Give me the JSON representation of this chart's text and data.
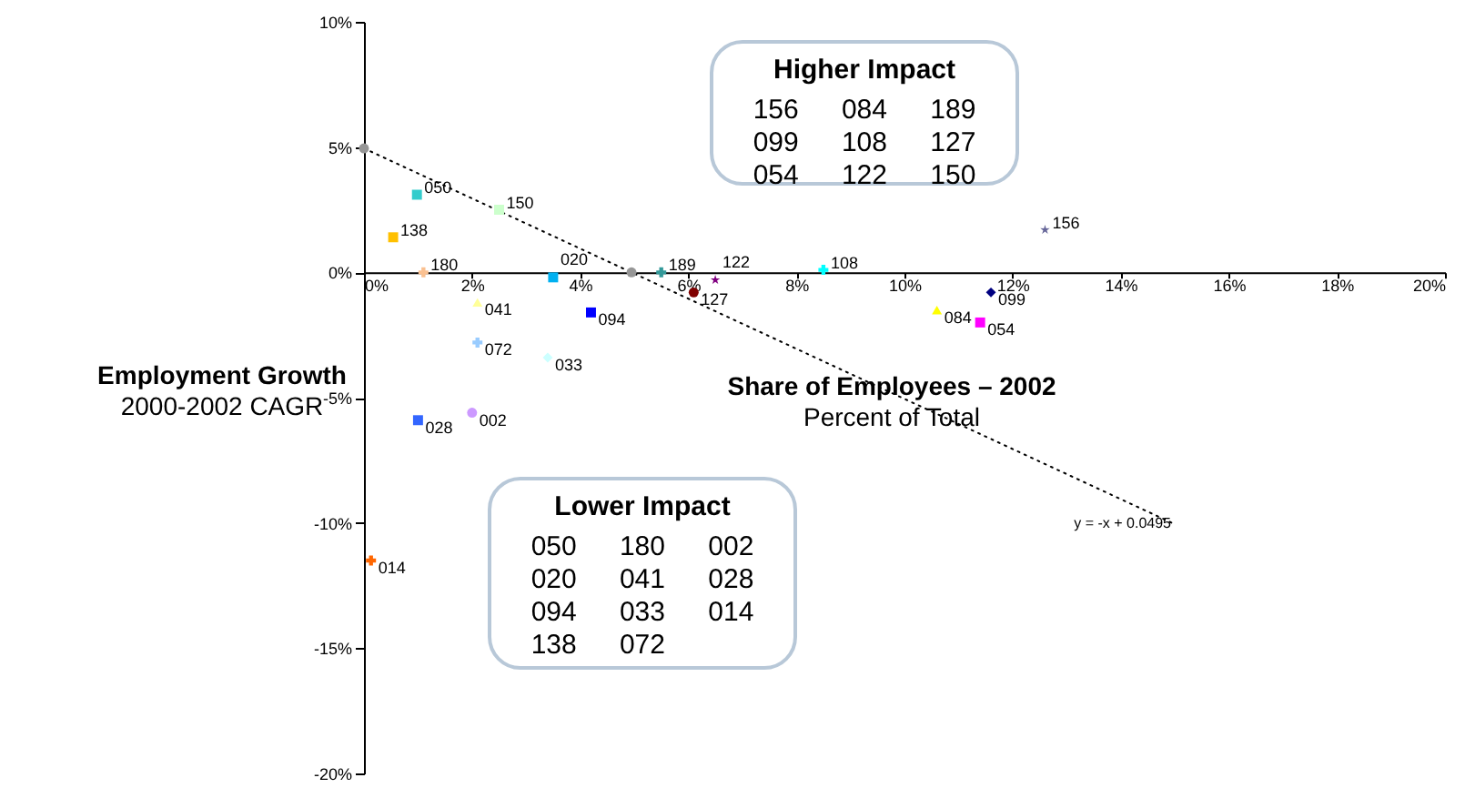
{
  "chart_data": {
    "type": "scatter",
    "xlabel": "Share of Employees – 2002",
    "ylabel": "Employment Growth",
    "xlim": [
      0,
      20
    ],
    "ylim": [
      -20,
      10
    ],
    "xticks": [
      {
        "value": 0,
        "label": "0%"
      },
      {
        "value": 2,
        "label": "2%"
      },
      {
        "value": 4,
        "label": "4%"
      },
      {
        "value": 6,
        "label": "6%"
      },
      {
        "value": 8,
        "label": "8%"
      },
      {
        "value": 10,
        "label": "10%"
      },
      {
        "value": 12,
        "label": "12%"
      },
      {
        "value": 14,
        "label": "14%"
      },
      {
        "value": 16,
        "label": "16%"
      },
      {
        "value": 18,
        "label": "18%"
      },
      {
        "value": 20,
        "label": "20%"
      }
    ],
    "yticks": [
      {
        "value": -20,
        "label": "-20%"
      },
      {
        "value": -15,
        "label": "-15%"
      },
      {
        "value": -10,
        "label": "-10%"
      },
      {
        "value": -5,
        "label": "-5%"
      },
      {
        "value": 0,
        "label": "0%"
      },
      {
        "value": 5,
        "label": "5%"
      },
      {
        "value": 10,
        "label": "10%"
      }
    ],
    "grid": false,
    "series": [
      {
        "type": "line",
        "color": "#000000",
        "line_style": "dotted",
        "marker": "none",
        "x": [
          0,
          15
        ],
        "values": [
          4.95,
          -10.05
        ]
      },
      {
        "color": "#969696",
        "marker": "circle",
        "x": [
          0,
          4.95
        ],
        "values": [
          4.95,
          0
        ]
      },
      {
        "name": "050",
        "color": "#33cccc",
        "marker": "square",
        "x": [
          0.98
        ],
        "values": [
          3.1
        ]
      },
      {
        "name": "150",
        "color": "#ccffcc",
        "marker": "square",
        "x": [
          2.5
        ],
        "values": [
          2.5
        ]
      },
      {
        "name": "138",
        "color": "#ffc000",
        "marker": "square",
        "x": [
          0.54
        ],
        "values": [
          1.4
        ]
      },
      {
        "name": "180",
        "color": "#fac090",
        "marker": "cross",
        "x": [
          1.1
        ],
        "values": [
          0
        ]
      },
      {
        "name": "020",
        "color": "#00b0f0",
        "marker": "square",
        "x": [
          3.5
        ],
        "values": [
          -0.2
        ]
      },
      {
        "name": "041",
        "color": "#ffff99",
        "marker": "triangle",
        "x": [
          2.1
        ],
        "values": [
          -1.2
        ]
      },
      {
        "name": "094",
        "color": "#0000ff",
        "marker": "square",
        "x": [
          4.2
        ],
        "values": [
          -1.6
        ]
      },
      {
        "name": "072",
        "color": "#99ccff",
        "marker": "cross",
        "x": [
          2.1
        ],
        "values": [
          -2.8
        ]
      },
      {
        "name": "033",
        "color": "#ccffff",
        "marker": "diamond",
        "x": [
          3.4
        ],
        "values": [
          -3.4
        ]
      },
      {
        "name": "002",
        "color": "#cc99ff",
        "marker": "circle",
        "x": [
          2.0
        ],
        "values": [
          -5.6
        ]
      },
      {
        "name": "028",
        "color": "#3366ff",
        "marker": "square",
        "x": [
          1.0
        ],
        "values": [
          -5.9
        ]
      },
      {
        "name": "014",
        "color": "#ff6600",
        "marker": "cross",
        "x": [
          0.13
        ],
        "values": [
          -11.5
        ]
      },
      {
        "name": "189",
        "color": "#339999",
        "marker": "cross",
        "x": [
          5.5
        ],
        "values": [
          0
        ]
      },
      {
        "name": "122",
        "color": "#800080",
        "marker": "star",
        "x": [
          6.5
        ],
        "values": [
          -0.3
        ]
      },
      {
        "name": "127",
        "color": "#800000",
        "marker": "circle",
        "x": [
          6.1
        ],
        "values": [
          -0.8
        ]
      },
      {
        "name": "108",
        "color": "#00ffff",
        "marker": "cross",
        "x": [
          8.5
        ],
        "values": [
          0.1
        ]
      },
      {
        "name": "084",
        "color": "#ffff00",
        "marker": "triangle",
        "x": [
          10.6
        ],
        "values": [
          -1.5
        ]
      },
      {
        "name": "054",
        "color": "#ff00ff",
        "marker": "square",
        "x": [
          11.4
        ],
        "values": [
          -2.0
        ]
      },
      {
        "name": "099",
        "color": "#000080",
        "marker": "diamond",
        "x": [
          11.6
        ],
        "values": [
          -0.8
        ]
      },
      {
        "name": "156",
        "color": "#666699",
        "marker": "star",
        "x": [
          12.6
        ],
        "values": [
          1.7
        ]
      }
    ],
    "annotations": [
      "2000-2002 CAGR",
      "Percent of Total",
      {
        "text": "y = -x + 0.0495",
        "x": 15,
        "y": -10.05
      },
      "Higher Impact",
      "156 084 189",
      "099 108 127",
      "054 122 150",
      "Lower Impact",
      "050 180 002",
      "020 041 028",
      "094 033 014",
      "138 072"
    ]
  }
}
